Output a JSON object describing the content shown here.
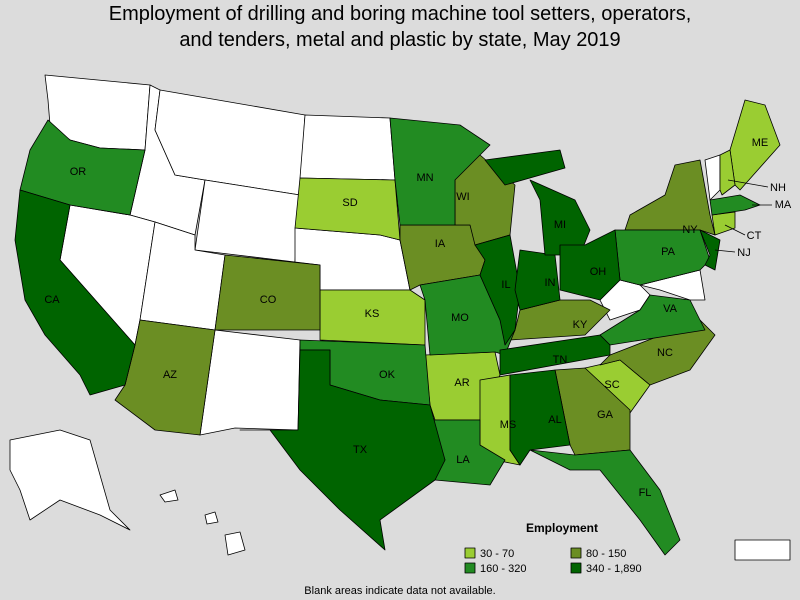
{
  "title": [
    "Employment of drilling and boring machine tool setters, operators,",
    "and tenders, metal and plastic by state, May 2019"
  ],
  "legend": {
    "title": "Employment",
    "items": [
      {
        "label": "30 - 70",
        "color": "#9acd32",
        "states": [
          "SD",
          "KS",
          "AR",
          "MS",
          "SC",
          "ME",
          "NH",
          "CT"
        ]
      },
      {
        "label": "80 - 150",
        "color": "#6b8e23",
        "states": [
          "CO",
          "AZ",
          "IA",
          "WI",
          "NY",
          "KY",
          "NC",
          "GA"
        ]
      },
      {
        "label": "160 - 320",
        "color": "#228b22",
        "states": [
          "OR",
          "MN",
          "MO",
          "OK",
          "LA",
          "FL",
          "PA",
          "VA",
          "MA"
        ]
      },
      {
        "label": "340 - 1,890",
        "color": "#006400",
        "states": [
          "CA",
          "TX",
          "IL",
          "IN",
          "MI",
          "OH",
          "TN",
          "AL",
          "NJ"
        ]
      }
    ]
  },
  "note": "Blank areas indicate data not available."
}
